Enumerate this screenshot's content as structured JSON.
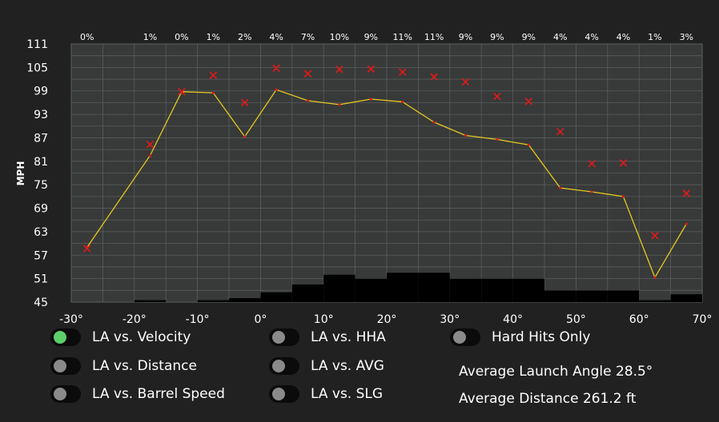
{
  "chart_data": {
    "type": "line",
    "ylabel": "MPH",
    "xlim": [
      -30,
      70
    ],
    "ylim": [
      45,
      111
    ],
    "x_ticks": [
      "-30°",
      "-20°",
      "-10°",
      "0°",
      "10°",
      "20°",
      "30°",
      "40°",
      "50°",
      "60°",
      "70°"
    ],
    "y_ticks": [
      "45",
      "51",
      "57",
      "63",
      "69",
      "75",
      "81",
      "87",
      "93",
      "99",
      "105",
      "111"
    ],
    "grid": true,
    "bins": [
      -27.5,
      -17.5,
      -12.5,
      -7.5,
      -2.5,
      2.5,
      7.5,
      12.5,
      17.5,
      22.5,
      27.5,
      32.5,
      37.5,
      42.5,
      47.5,
      52.5,
      57.5,
      62.5,
      67.5
    ],
    "percent_labels": [
      "0%",
      "1%",
      "0%",
      "1%",
      "2%",
      "4%",
      "7%",
      "10%",
      "9%",
      "11%",
      "11%",
      "9%",
      "9%",
      "9%",
      "4%",
      "4%",
      "4%",
      "1%",
      "3%"
    ],
    "series": [
      {
        "values": [
          59,
          82.5,
          98.8,
          98.5,
          87.3,
          99.3,
          96.5,
          95.5,
          96.9,
          96.2,
          91,
          87.6,
          86.6,
          85.2,
          74.2,
          73.2,
          72,
          51.3,
          65
        ]
      },
      {
        "values": [
          58.7,
          85.3,
          98.8,
          103,
          96,
          104.8,
          103.4,
          104.5,
          104.6,
          103.8,
          102.6,
          101.3,
          97.6,
          96.3,
          88.6,
          80.4,
          80.6,
          62,
          72.8
        ]
      }
    ],
    "histogram": {
      "edges": [
        -20,
        -15,
        -10,
        -5,
        0,
        5,
        10,
        15,
        20,
        25,
        30,
        35,
        40,
        45,
        50,
        55,
        60,
        65,
        70
      ],
      "values": [
        0.5,
        0,
        0.5,
        1,
        2.5,
        4.5,
        7,
        6,
        7.5,
        7.5,
        6,
        6,
        6,
        3,
        3,
        3,
        0.5,
        2
      ]
    },
    "colors": {
      "plot_bg": "#373a39",
      "grid": "#5a5d5c",
      "line": "#e6c81f",
      "marker": "#dd1a1a",
      "bars": "#000000"
    }
  },
  "toggles": [
    {
      "label": "LA vs. Velocity",
      "on": true
    },
    {
      "label": "LA vs. Distance",
      "on": false
    },
    {
      "label": "LA vs. Barrel Speed",
      "on": false
    },
    {
      "label": "LA vs. HHA",
      "on": false
    },
    {
      "label": "LA vs. AVG",
      "on": false
    },
    {
      "label": "LA vs. SLG",
      "on": false
    },
    {
      "label": "Hard Hits Only",
      "on": false
    }
  ],
  "stats": {
    "avg_launch_angle": "Average Launch Angle 28.5°",
    "avg_distance": "Average Distance 261.2 ft"
  }
}
